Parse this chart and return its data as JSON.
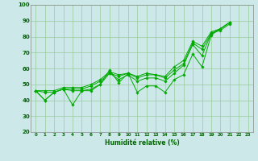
{
  "title": "",
  "xlabel": "Humidité relative (%)",
  "ylabel": "",
  "bg_color": "#cce8e8",
  "grid_color": "#99cc99",
  "line_color": "#00aa00",
  "xlim": [
    -0.5,
    23.5
  ],
  "ylim": [
    20,
    100
  ],
  "xtick_labels": [
    "0",
    "1",
    "2",
    "3",
    "4",
    "5",
    "6",
    "7",
    "8",
    "9",
    "10",
    "11",
    "12",
    "13",
    "14",
    "15",
    "16",
    "17",
    "18",
    "19",
    "20",
    "21",
    "22",
    "23"
  ],
  "ytick_labels": [
    "20",
    "30",
    "40",
    "50",
    "60",
    "70",
    "80",
    "90",
    "100"
  ],
  "series": [
    [
      46,
      40,
      45,
      47,
      37,
      46,
      46,
      50,
      59,
      51,
      57,
      45,
      49,
      49,
      45,
      53,
      56,
      69,
      61,
      81,
      85,
      89
    ],
    [
      46,
      40,
      45,
      47,
      46,
      46,
      47,
      50,
      57,
      53,
      56,
      52,
      54,
      54,
      52,
      57,
      62,
      75,
      68,
      82,
      84,
      88
    ],
    [
      46,
      45,
      45,
      47,
      47,
      47,
      49,
      52,
      57,
      55,
      57,
      54,
      56,
      56,
      54,
      59,
      63,
      76,
      72,
      82,
      85,
      89
    ],
    [
      46,
      46,
      46,
      48,
      48,
      48,
      50,
      53,
      58,
      56,
      57,
      55,
      57,
      56,
      55,
      61,
      65,
      77,
      74,
      83,
      85,
      89
    ]
  ],
  "x_values": [
    0,
    1,
    2,
    3,
    4,
    5,
    6,
    7,
    8,
    9,
    10,
    11,
    12,
    13,
    14,
    15,
    16,
    17,
    18,
    19,
    20,
    21
  ]
}
